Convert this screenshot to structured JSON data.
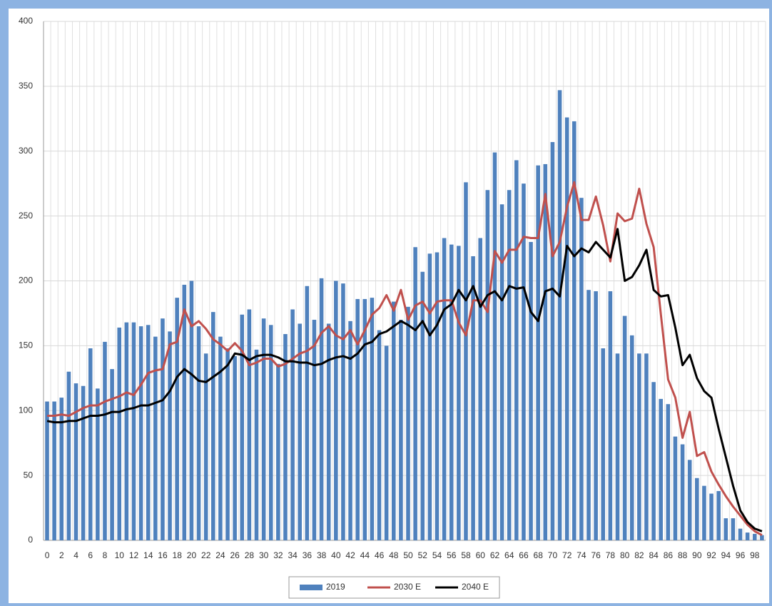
{
  "chart_data": {
    "type": "bar",
    "categories": [
      "0",
      null,
      "2",
      null,
      "4",
      null,
      "6",
      null,
      "8",
      null,
      "10",
      null,
      "12",
      null,
      "14",
      null,
      "16",
      null,
      "18",
      null,
      "20",
      null,
      "22",
      null,
      "24",
      null,
      "26",
      null,
      "28",
      null,
      "30",
      null,
      "32",
      null,
      "34",
      null,
      "36",
      null,
      "38",
      null,
      "40",
      null,
      "42",
      null,
      "44",
      null,
      "46",
      null,
      "48",
      null,
      "50",
      null,
      "52",
      null,
      "54",
      null,
      "56",
      null,
      "58",
      null,
      "60",
      null,
      "62",
      null,
      "64",
      null,
      "66",
      null,
      "68",
      null,
      "70",
      null,
      "72",
      null,
      "74",
      null,
      "76",
      null,
      "78",
      null,
      "80",
      null,
      "82",
      null,
      "84",
      null,
      "86",
      null,
      "88",
      null,
      "90",
      null,
      "92",
      null,
      "94",
      null,
      "96",
      null,
      "98",
      null
    ],
    "series": [
      {
        "name": "2019",
        "type": "bar",
        "color": "#4f81bd",
        "values": [
          107,
          107,
          110,
          130,
          121,
          119,
          148,
          117,
          153,
          132,
          164,
          168,
          168,
          165,
          166,
          157,
          171,
          161,
          187,
          197,
          200,
          165,
          144,
          176,
          157,
          148,
          142,
          174,
          178,
          147,
          171,
          166,
          136,
          159,
          178,
          167,
          196,
          170,
          202,
          167,
          200,
          198,
          169,
          186,
          186,
          187,
          162,
          150,
          184,
          170,
          180,
          226,
          207,
          221,
          222,
          233,
          228,
          227,
          276,
          219,
          233,
          270,
          299,
          259,
          270,
          293,
          275,
          230,
          289,
          290,
          307,
          347,
          326,
          323,
          264,
          193,
          192,
          148,
          192,
          144,
          173,
          158,
          144,
          144,
          122,
          109,
          105,
          80,
          74,
          62,
          48,
          42,
          36,
          38,
          17,
          17,
          9,
          6,
          5,
          4
        ]
      },
      {
        "name": "2030 E",
        "type": "line",
        "color": "#c0504d",
        "values": [
          96,
          96,
          97,
          96,
          99,
          102,
          104,
          104,
          107,
          109,
          111,
          114,
          112,
          120,
          129,
          131,
          132,
          151,
          153,
          178,
          165,
          169,
          163,
          155,
          151,
          146,
          152,
          146,
          135,
          137,
          140,
          140,
          134,
          136,
          140,
          144,
          146,
          150,
          160,
          165,
          158,
          155,
          162,
          151,
          162,
          174,
          179,
          189,
          177,
          193,
          170,
          181,
          184,
          175,
          184,
          185,
          185,
          168,
          158,
          185,
          185,
          176,
          223,
          214,
          224,
          224,
          234,
          233,
          233,
          267,
          219,
          230,
          257,
          276,
          247,
          247,
          265,
          243,
          215,
          252,
          246,
          248,
          271,
          244,
          226,
          174,
          124,
          110,
          79,
          99,
          65,
          68,
          53,
          43,
          34,
          26,
          19,
          12,
          7,
          4
        ]
      },
      {
        "name": "2040 E",
        "type": "line",
        "color": "#000000",
        "values": [
          92,
          91,
          91,
          92,
          92,
          94,
          96,
          96,
          97,
          99,
          99,
          101,
          102,
          104,
          104,
          106,
          108,
          115,
          126,
          132,
          128,
          123,
          122,
          126,
          130,
          135,
          144,
          143,
          139,
          142,
          143,
          143,
          141,
          138,
          138,
          137,
          137,
          135,
          136,
          139,
          141,
          142,
          140,
          144,
          151,
          153,
          159,
          161,
          165,
          169,
          166,
          162,
          169,
          158,
          166,
          178,
          182,
          193,
          185,
          196,
          180,
          189,
          192,
          185,
          196,
          194,
          195,
          176,
          169,
          192,
          194,
          188,
          227,
          219,
          225,
          222,
          230,
          224,
          218,
          240,
          200,
          203,
          212,
          224,
          193,
          188,
          189,
          164,
          135,
          143,
          125,
          115,
          110,
          86,
          64,
          42,
          23,
          14,
          9,
          7
        ]
      }
    ],
    "ylim": [
      0,
      400
    ],
    "yticks": [
      0,
      50,
      100,
      150,
      200,
      250,
      300,
      350,
      400
    ],
    "grid": true,
    "legend": "bottom"
  }
}
